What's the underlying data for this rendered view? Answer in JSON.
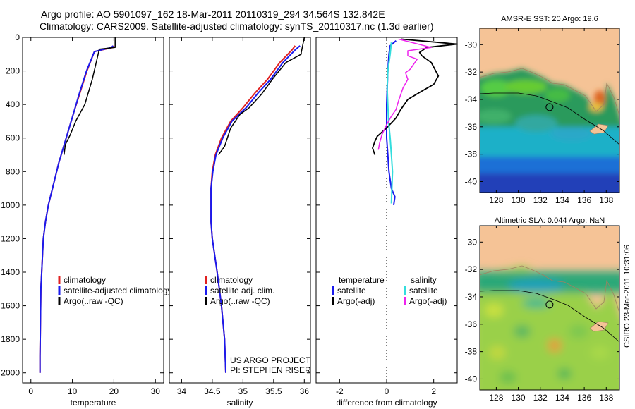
{
  "title_line1": "Argo profile: AO 5901097_162 18-Mar-2011 20110319_294 34.564S 132.842E",
  "title_line2": "Climatology: CARS2009. Satellite-adjusted climatology: synTS_20110317.nc (1.3d earlier)",
  "side_stamp": "CSIRO 23-Mar-2011 10:31:06",
  "colors": {
    "climatology": "#e02020",
    "satellite": "#1a1aee",
    "argo": "#000000",
    "salinity_satellite": "#33dddd",
    "salinity_argo": "#ee22ee",
    "land": "#f5c396"
  },
  "chart_data": [
    {
      "type": "line",
      "xlabel": "temperature",
      "xlim": [
        -2,
        32
      ],
      "xticks": [
        0,
        10,
        20,
        30
      ],
      "ylim": [
        0,
        2060
      ],
      "yticks": [
        0,
        200,
        400,
        600,
        800,
        1000,
        1200,
        1400,
        1600,
        1800,
        2000
      ],
      "reversed_y": true,
      "legend": {
        "entries": [
          "climatology",
          "satellite-adjusted climatology",
          "Argo(..raw -QC)"
        ]
      },
      "series": [
        {
          "name": "climatology",
          "color_key": "climatology",
          "width": 2,
          "x": [
            20.0,
            19.8,
            15.3,
            13.5,
            11.7,
            10.3,
            8.5,
            6.7,
            5.2,
            4.2,
            3.5,
            3.0,
            2.8,
            2.6,
            2.4,
            2.3,
            2.2,
            2.2
          ],
          "y": [
            50,
            60,
            85,
            200,
            340,
            450,
            600,
            750,
            900,
            1000,
            1100,
            1200,
            1300,
            1400,
            1500,
            1700,
            1900,
            2000
          ]
        },
        {
          "name": "satellite-adjusted climatology",
          "color_key": "satellite",
          "width": 2,
          "x": [
            19.8,
            19.4,
            15.3,
            13.4,
            11.6,
            10.3,
            8.5,
            6.7,
            5.2,
            4.2,
            3.5,
            3.0,
            2.8,
            2.6,
            2.4,
            2.3,
            2.2,
            2.2
          ],
          "y": [
            50,
            60,
            85,
            200,
            340,
            450,
            600,
            750,
            900,
            1000,
            1100,
            1200,
            1300,
            1400,
            1500,
            1700,
            1900,
            2000
          ]
        },
        {
          "name": "Argo(..raw -QC)",
          "color_key": "argo",
          "width": 1.5,
          "x": [
            20.3,
            20.3,
            16.5,
            14.8,
            13.0,
            10.8,
            9.5,
            8.3,
            8.0
          ],
          "y": [
            0,
            60,
            70,
            250,
            400,
            500,
            580,
            640,
            700
          ]
        }
      ],
      "annotations": []
    },
    {
      "type": "line",
      "xlabel": "salinity",
      "xlim": [
        33.8,
        36.1
      ],
      "xticks": [
        34,
        34.5,
        35,
        35.5,
        36
      ],
      "xtick_labels": [
        "34",
        "34.5",
        "35",
        "35.5",
        "36"
      ],
      "ylim": [
        0,
        2060
      ],
      "reversed_y": true,
      "legend": {
        "entries": [
          "climatology",
          "satellite adj. clim.",
          "Argo(..raw -QC)"
        ]
      },
      "series": [
        {
          "name": "climatology",
          "color_key": "climatology",
          "width": 2,
          "x": [
            35.85,
            35.8,
            35.6,
            35.4,
            35.2,
            35.0,
            34.8,
            34.65,
            34.55,
            34.5,
            34.48,
            34.48,
            34.5,
            34.58,
            34.65,
            34.7,
            34.72
          ],
          "y": [
            50,
            75,
            150,
            250,
            330,
            420,
            500,
            600,
            700,
            800,
            900,
            1100,
            1200,
            1400,
            1600,
            1800,
            2000
          ]
        },
        {
          "name": "satellite adj. clim.",
          "color_key": "satellite",
          "width": 2,
          "x": [
            35.93,
            35.85,
            35.65,
            35.45,
            35.25,
            35.05,
            34.82,
            34.67,
            34.56,
            34.51,
            34.48,
            34.48,
            34.5,
            34.58,
            34.65,
            34.7,
            34.72
          ],
          "y": [
            50,
            75,
            150,
            250,
            330,
            420,
            500,
            600,
            700,
            800,
            900,
            1100,
            1200,
            1400,
            1600,
            1800,
            2000
          ]
        },
        {
          "name": "Argo(..raw -QC)",
          "color_key": "argo",
          "width": 1.5,
          "x": [
            36.0,
            35.95,
            35.95,
            35.7,
            35.5,
            35.3,
            35.1,
            34.95,
            34.8,
            34.7,
            34.6
          ],
          "y": [
            0,
            90,
            100,
            150,
            240,
            340,
            420,
            460,
            540,
            650,
            700
          ]
        }
      ],
      "annotations": [
        "US ARGO PROJECT",
        "PI: STEPHEN RISER"
      ]
    },
    {
      "type": "line",
      "xlabel": "difference from climatology",
      "xlim": [
        -3,
        3
      ],
      "xticks": [
        -2,
        0,
        2
      ],
      "ylim": [
        0,
        2060
      ],
      "reversed_y": true,
      "legend": {
        "temperature_header": "temperature",
        "salinity_header": "salinity",
        "temperature_entries": [
          "satellite",
          "Argo(-adj)"
        ],
        "salinity_entries": [
          "satellite",
          "Argo(-adj)"
        ]
      },
      "series": [
        {
          "name": "temperature satellite",
          "color_key": "satellite",
          "width": 2,
          "x": [
            0.4,
            0.15,
            0.1,
            0.05,
            0.0,
            0.0,
            0.05,
            0.1,
            0.2,
            0.35,
            0.3
          ],
          "y": [
            20,
            50,
            100,
            200,
            400,
            600,
            700,
            800,
            900,
            950,
            1000
          ]
        },
        {
          "name": "temperature Argo(-adj)",
          "color_key": "argo",
          "width": 1.8,
          "x": [
            0.6,
            3.0,
            1.7,
            1.4,
            1.5,
            1.9,
            2.2,
            2.0,
            1.5,
            0.9,
            0.6,
            0.4,
            0.0,
            -0.4,
            -0.5,
            -0.6,
            -0.5
          ],
          "y": [
            10,
            40,
            60,
            90,
            110,
            150,
            230,
            280,
            320,
            370,
            430,
            480,
            540,
            590,
            620,
            660,
            700
          ]
        },
        {
          "name": "salinity satellite",
          "color_key": "salinity_satellite",
          "width": 2,
          "x": [
            0.2,
            0.15,
            0.05,
            0.02,
            0.05,
            0.08,
            0.15,
            0.2,
            0.25,
            0.2
          ],
          "y": [
            30,
            100,
            200,
            300,
            400,
            500,
            600,
            700,
            800,
            990
          ]
        },
        {
          "name": "salinity Argo(-adj)",
          "color_key": "salinity_argo",
          "width": 1.5,
          "x": [
            0.5,
            1.9,
            0.9,
            0.9,
            1.3,
            1.0,
            0.8,
            0.9,
            0.7,
            0.5,
            0.4,
            0.2,
            0.0,
            -0.2,
            -0.3,
            -0.35
          ],
          "y": [
            10,
            60,
            80,
            110,
            130,
            190,
            210,
            250,
            300,
            380,
            430,
            470,
            520,
            580,
            630,
            670
          ]
        }
      ],
      "annotations": []
    }
  ],
  "maps": [
    {
      "title": "AMSR-E SST: 20 Argo: 19.6",
      "xticks": [
        128,
        130,
        132,
        134,
        136,
        138
      ],
      "yticks": [
        -30,
        -32,
        -34,
        -36,
        -38,
        -40
      ],
      "xlim": [
        126.5,
        139.2
      ],
      "ylim": [
        -40.8,
        -28.8
      ],
      "float_position": [
        132.842,
        -34.564
      ]
    },
    {
      "title": "Altimetric SLA: 0.044 Argo: NaN",
      "xticks": [
        128,
        130,
        132,
        134,
        136,
        138
      ],
      "yticks": [
        -30,
        -32,
        -34,
        -36,
        -38,
        -40
      ],
      "xlim": [
        126.5,
        139.2
      ],
      "ylim": [
        -40.8,
        -28.8
      ],
      "float_position": [
        132.842,
        -34.564
      ]
    }
  ]
}
